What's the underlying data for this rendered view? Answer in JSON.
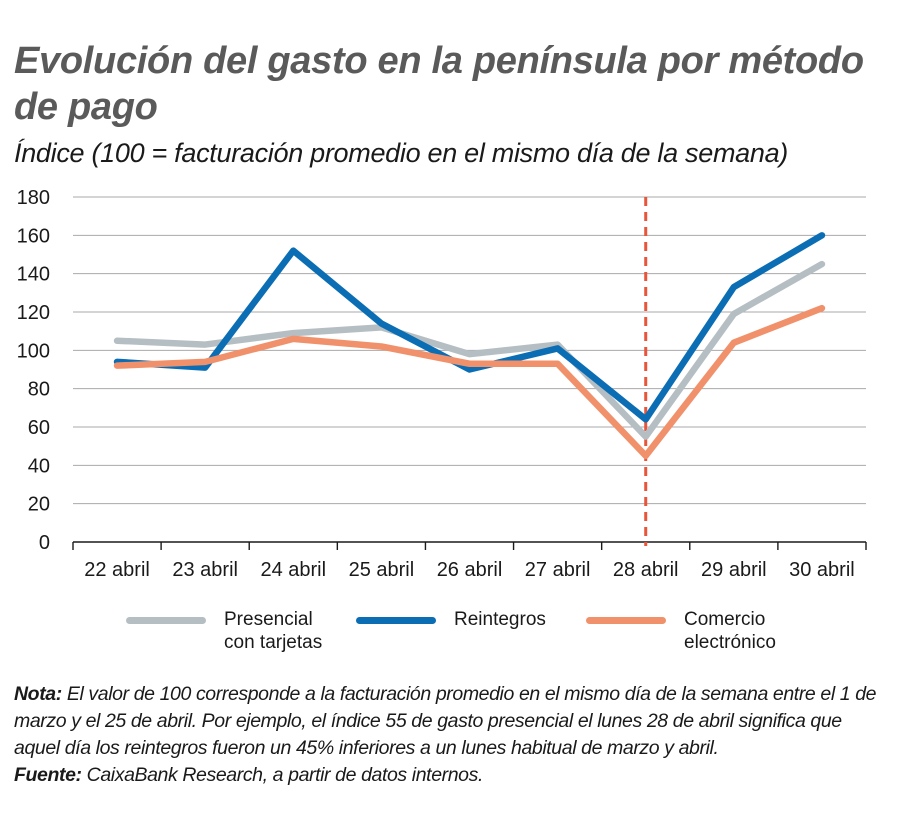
{
  "title": "Evolución del gasto en la península por método de pago",
  "subtitle": "Índice (100 = facturación promedio en el mismo día de la semana)",
  "note_label": "Nota:",
  "note_text": "El valor de 100 corresponde a la facturación promedio en el mismo día de la semana entre el 1 de marzo y el 25 de abril. Por ejemplo, el índice 55 de gasto presencial el lunes 28 de abril significa que aquel día los reintegros fueron un 45% inferiores a un lunes habitual de marzo y abril.",
  "source_label": "Fuente:",
  "source_text": "CaixaBank Research, a partir de datos internos.",
  "chart_data": {
    "type": "line",
    "title": "Evolución del gasto en la península por método de pago",
    "ylabel": "Índice (100 = facturación promedio en el mismo día de la semana)",
    "categories": [
      "22 abril",
      "23 abril",
      "24 abril",
      "25 abril",
      "26 abril",
      "27 abril",
      "28 abril",
      "29 abril",
      "30 abril"
    ],
    "ylim": [
      0,
      180
    ],
    "yticks": [
      0,
      20,
      40,
      60,
      80,
      100,
      120,
      140,
      160,
      180
    ],
    "grid": true,
    "legend_position": "bottom",
    "vline_category": "28 abril",
    "vline_color": "#e8553a",
    "series": [
      {
        "name": "Presencial\ncon tarjetas",
        "color": "#b5bfc3",
        "values": [
          105,
          103,
          109,
          112,
          98,
          103,
          55,
          119,
          145
        ]
      },
      {
        "name": "Reintegros",
        "color": "#0b6db3",
        "values": [
          94,
          91,
          152,
          114,
          90,
          101,
          64,
          133,
          160
        ]
      },
      {
        "name": "Comercio\nelectrónico",
        "color": "#f0916b",
        "values": [
          92,
          94,
          106,
          102,
          93,
          93,
          45,
          104,
          122
        ]
      }
    ]
  }
}
